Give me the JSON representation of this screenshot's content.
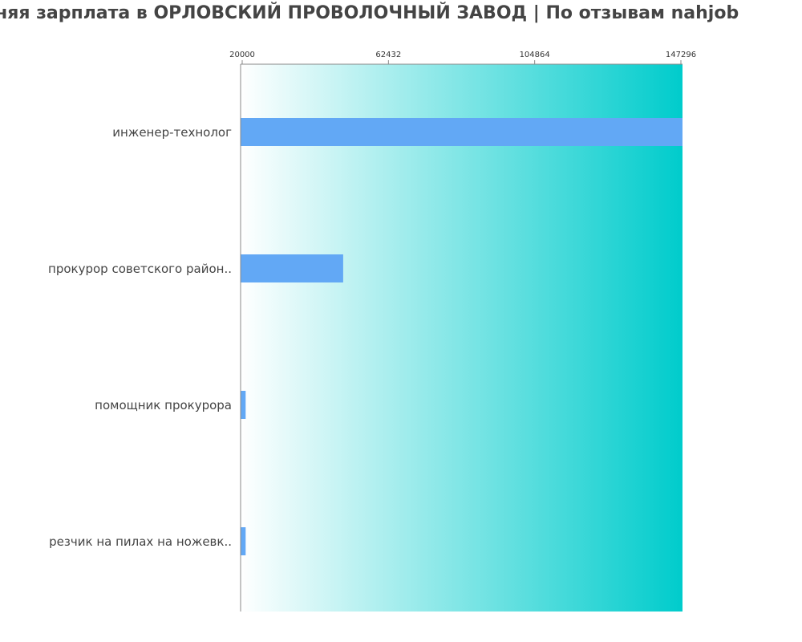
{
  "title": "няя зарплата в ОРЛОВСКИЙ ПРОВОЛОЧНЫЙ ЗАВОД | По отзывам nahjob",
  "chart_data": {
    "type": "bar",
    "orientation": "horizontal",
    "categories": [
      "инженер-технолог",
      "прокурор советского район..",
      "помощник прокурора",
      "резчик на пилах на ножевк.."
    ],
    "values": [
      147296,
      49300,
      21000,
      21000
    ],
    "xlim": [
      20000,
      147296
    ],
    "ticks": [
      "20000",
      "62432",
      "104864",
      "147296"
    ],
    "tick_values": [
      20000,
      62432,
      104864,
      147296
    ],
    "axis_position": "top",
    "grid": false,
    "bar_color": "#62a8f5",
    "background_gradient": [
      "#ffffff",
      "#00cccc"
    ]
  }
}
